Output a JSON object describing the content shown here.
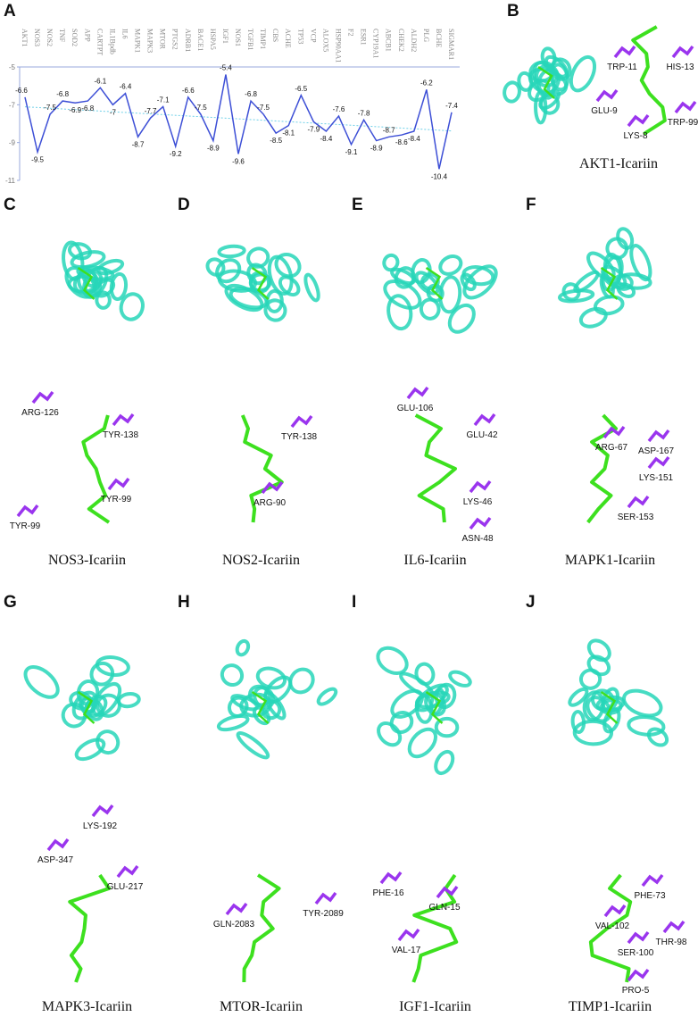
{
  "chart_data": {
    "type": "line",
    "title": "A",
    "categories": [
      "AKT1",
      "NOS3",
      "NOS2",
      "TNF",
      "SOD2",
      "APP",
      "CARTPT",
      "IL1Bpdb",
      "IL6",
      "MAPK1",
      "MAPK3",
      "MTOR",
      "PTGS2",
      "ADRB1",
      "BACE1",
      "HSPA5",
      "IGF1",
      "NOS1",
      "TGFB1",
      "TIMP1",
      "CBS",
      "ACHE",
      "TP53",
      "VCP",
      "ALOX5",
      "HSP90AA1",
      "F2",
      "ESR1",
      "CYP19A1",
      "ABCB1",
      "CHEK2",
      "ALDH2",
      "PLG",
      "BCHE",
      "SIGMAR1"
    ],
    "values": [
      -6.6,
      -9.5,
      -7.5,
      -6.8,
      -6.9,
      -6.8,
      -6.1,
      -7,
      -6.4,
      -8.7,
      -7.7,
      -7.1,
      -9.2,
      -6.6,
      -7.5,
      -8.9,
      -5.4,
      -9.6,
      -6.8,
      -7.5,
      -8.5,
      -8.1,
      -6.5,
      -7.9,
      -8.4,
      -7.6,
      -9.1,
      -7.8,
      -8.9,
      -8.7,
      -8.6,
      -8.4,
      -6.2,
      -10.4,
      -7.4
    ],
    "color": "#3d4fd6",
    "trend": true,
    "trend_color": "#6fd0e8",
    "ylim": [
      -5,
      -11
    ],
    "yticks": [
      -5,
      -7,
      -9,
      -11
    ]
  },
  "panels": [
    {
      "letter": "B",
      "caption": "AKT1-Icariin",
      "residues": [
        "TRP-11",
        "HIS-13",
        "GLU-9",
        "LYS-8",
        "TRP-99"
      ]
    },
    {
      "letter": "C",
      "caption": "NOS3-Icariin",
      "residues": [
        "ARG-126",
        "TYR-138",
        "TYR-99",
        "TYR-99"
      ]
    },
    {
      "letter": "D",
      "caption": "NOS2-Icariin",
      "residues": [
        "TYR-138",
        "ARG-90"
      ]
    },
    {
      "letter": "E",
      "caption": "IL6-Icariin",
      "residues": [
        "GLU-106",
        "GLU-42",
        "LYS-46",
        "ASN-48"
      ]
    },
    {
      "letter": "F",
      "caption": "MAPK1-Icariin",
      "residues": [
        "ARG-67",
        "ASP-167",
        "LYS-151",
        "SER-153"
      ]
    },
    {
      "letter": "G",
      "caption": "MAPK3-Icariin",
      "residues": [
        "LYS-192",
        "ASP-347",
        "GLU-217"
      ]
    },
    {
      "letter": "H",
      "caption": "MTOR-Icariin",
      "residues": [
        "GLN-2083",
        "TYR-2089"
      ]
    },
    {
      "letter": "I",
      "caption": "IGF1-Icariin",
      "residues": [
        "PHE-16",
        "GLN-15",
        "VAL-17"
      ]
    },
    {
      "letter": "J",
      "caption": "TIMP1-Icariin",
      "residues": [
        "PHE-73",
        "VAL-102",
        "THR-98",
        "SER-100",
        "PRO-5"
      ]
    }
  ]
}
